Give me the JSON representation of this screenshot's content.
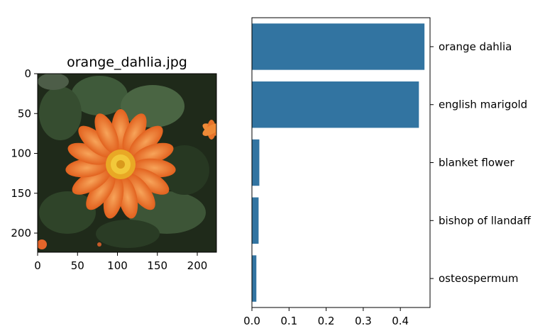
{
  "chart_data": [
    {
      "type": "image",
      "title": "orange_dahlia.jpg",
      "x_ticks": [
        0,
        50,
        100,
        150,
        200
      ],
      "y_ticks": [
        0,
        50,
        100,
        150,
        200
      ],
      "xlim": [
        0,
        224
      ],
      "ylim": [
        224,
        0
      ],
      "image_subject": "orange-dahlia-flower-photo"
    },
    {
      "type": "bar",
      "orientation": "horizontal",
      "categories": [
        "orange dahlia",
        "english marigold",
        "blanket flower",
        "bishop of llandaff",
        "osteospermum"
      ],
      "values": [
        0.465,
        0.45,
        0.02,
        0.018,
        0.012
      ],
      "x_ticks": [
        0.0,
        0.1,
        0.2,
        0.3,
        0.4
      ],
      "xlim": [
        0,
        0.48
      ],
      "category_axis_side": "right",
      "bar_color": "#3274a1"
    }
  ]
}
